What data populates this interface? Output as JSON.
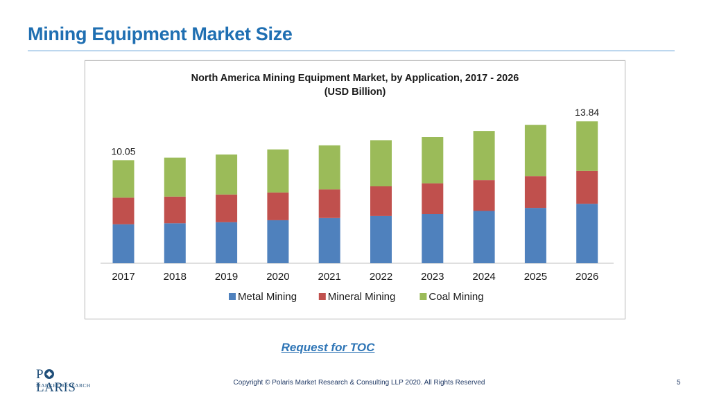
{
  "slide": {
    "title": "Mining Equipment Market Size",
    "toc_link": "Request for TOC",
    "copyright": "Copyright © Polaris Market Research & Consulting LLP 2020. All Rights Reserved",
    "page_number": "5",
    "logo": {
      "word_pre": "P",
      "word_post": "LARIS",
      "subtitle": "MARKET RESEARCH"
    }
  },
  "colors": {
    "title": "#1f6fb2",
    "metal": "#4f81bd",
    "mineral": "#c0504d",
    "coal": "#9bbb59",
    "link": "#2e75b6"
  },
  "chart_data": {
    "type": "bar",
    "stacked": true,
    "title_lines": [
      "North America Mining Equipment Market, by Application, 2017 - 2026",
      "(USD Billion)"
    ],
    "categories": [
      "2017",
      "2018",
      "2019",
      "2020",
      "2021",
      "2022",
      "2023",
      "2024",
      "2025",
      "2026"
    ],
    "series": [
      {
        "name": "Metal Mining",
        "color": "#4f81bd",
        "values": [
          3.8,
          3.9,
          4.0,
          4.2,
          4.4,
          4.6,
          4.8,
          5.1,
          5.4,
          5.8
        ]
      },
      {
        "name": "Mineral Mining",
        "color": "#c0504d",
        "values": [
          2.6,
          2.6,
          2.7,
          2.7,
          2.8,
          2.9,
          3.0,
          3.0,
          3.1,
          3.2
        ]
      },
      {
        "name": "Coal Mining",
        "color": "#9bbb59",
        "values": [
          3.65,
          3.8,
          3.9,
          4.2,
          4.3,
          4.5,
          4.5,
          4.8,
          5.0,
          4.84
        ]
      }
    ],
    "data_labels": [
      {
        "category": "2017",
        "text": "10.05"
      },
      {
        "category": "2026",
        "text": "13.84"
      }
    ],
    "ylim": [
      0,
      15
    ],
    "y_axis_visible": false,
    "grid": false,
    "legend_position": "bottom"
  }
}
